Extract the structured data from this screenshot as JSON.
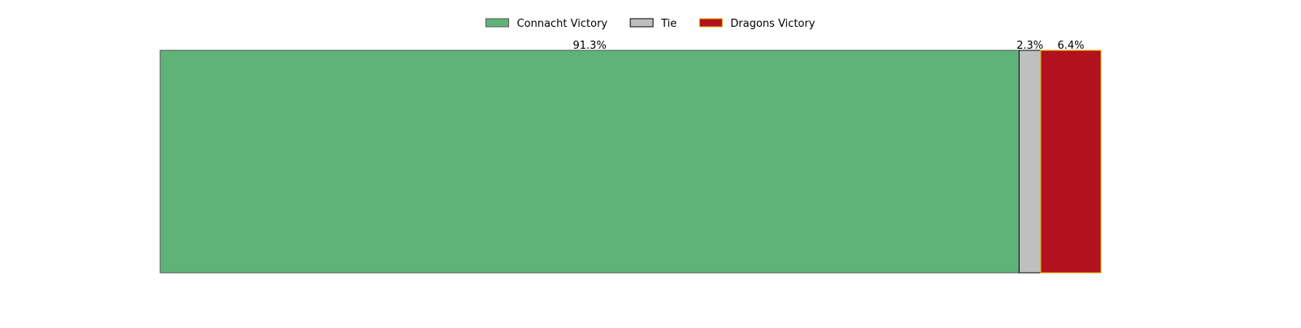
{
  "chart_data": {
    "type": "bar",
    "orientation": "horizontal-stacked",
    "title": "",
    "xlabel": "",
    "ylabel": "",
    "axes_visible": false,
    "grid": false,
    "legend_position": "top-center",
    "series": [
      {
        "name": "Connacht Victory",
        "value": 91.3,
        "label": "91.3%",
        "color": "#5fb378",
        "edge_color": "#555555"
      },
      {
        "name": "Tie",
        "value": 2.3,
        "label": "2.3%",
        "color": "#c0bfbf",
        "edge_color": "#000000"
      },
      {
        "name": "Dragons Victory",
        "value": 6.4,
        "label": "6.4%",
        "color": "#b2121e",
        "edge_color": "#f0b400"
      }
    ]
  }
}
